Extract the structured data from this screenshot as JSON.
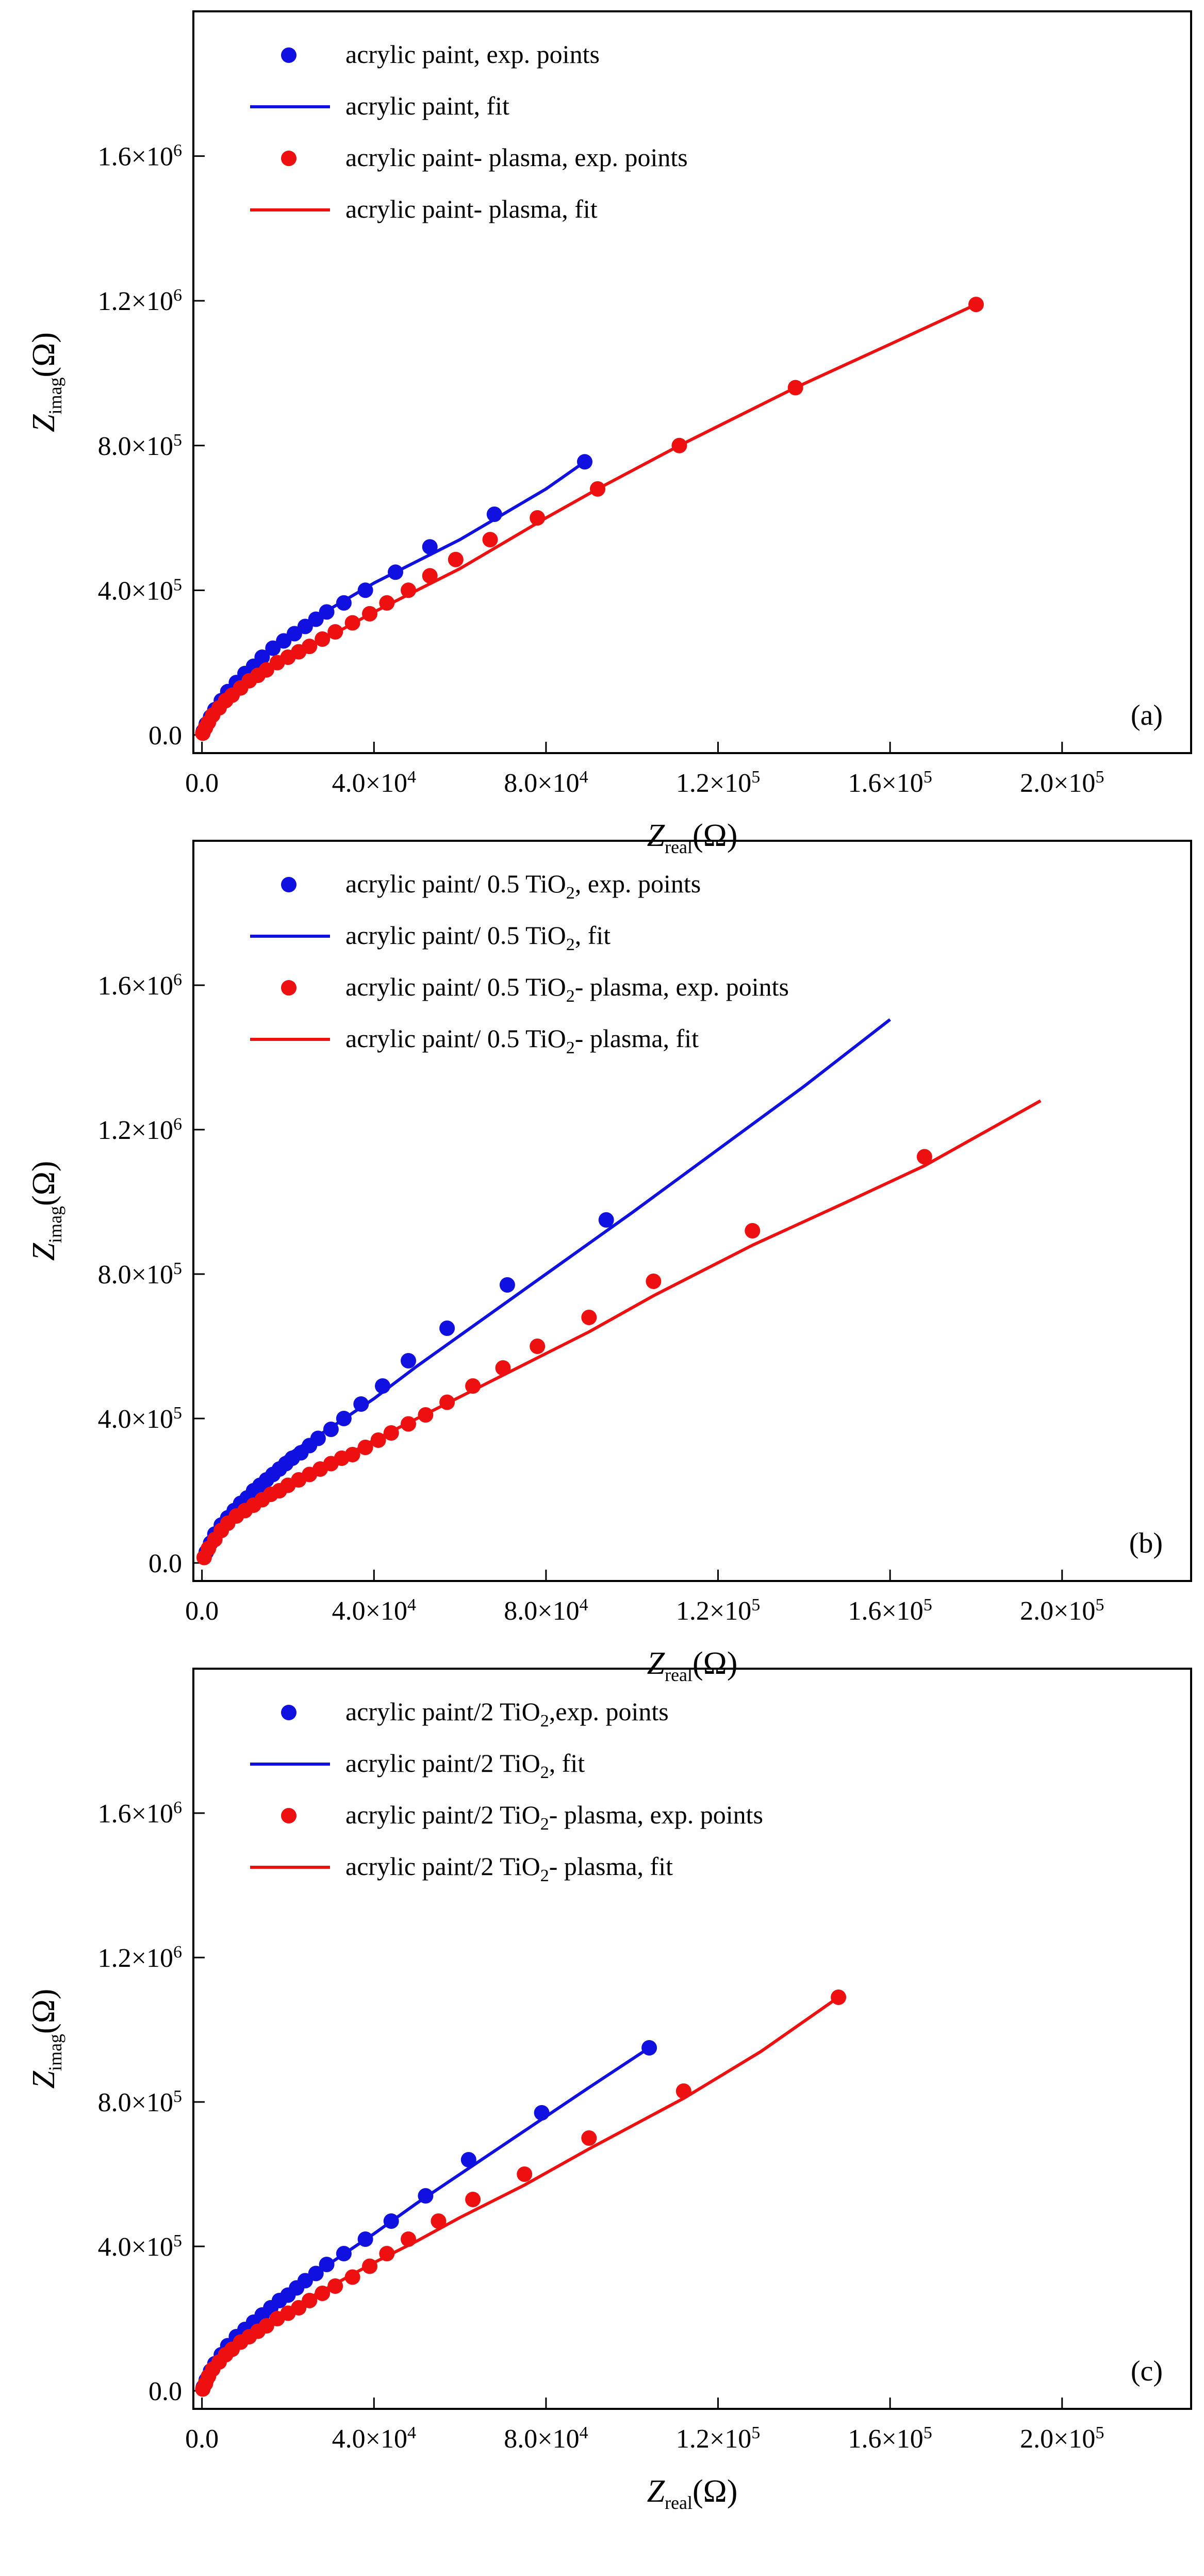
{
  "figure": {
    "panels": [
      {
        "tag": "(a)",
        "xlabel": {
          "main": "Z",
          "sub": "real",
          "unit": "(Ω)"
        },
        "ylabel": {
          "main": "Z",
          "sub": "imag",
          "unit": "(Ω)"
        },
        "xticks": [
          {
            "value": 0,
            "mant": "0.0",
            "exp": ""
          },
          {
            "value": 40000,
            "mant": "4.0×10",
            "exp": "4"
          },
          {
            "value": 80000,
            "mant": "8.0×10",
            "exp": "4"
          },
          {
            "value": 120000,
            "mant": "1.2×10",
            "exp": "5"
          },
          {
            "value": 160000,
            "mant": "1.6×10",
            "exp": "5"
          },
          {
            "value": 200000,
            "mant": "2.0×10",
            "exp": "5"
          }
        ],
        "yticks": [
          {
            "value": 0,
            "mant": "0.0",
            "exp": ""
          },
          {
            "value": 400000,
            "mant": "4.0×10",
            "exp": "5"
          },
          {
            "value": 800000,
            "mant": "8.0×10",
            "exp": "5"
          },
          {
            "value": 1200000,
            "mant": "1.2×10",
            "exp": "6"
          },
          {
            "value": 1600000,
            "mant": "1.6×10",
            "exp": "6"
          }
        ],
        "legend": [
          {
            "kind": "points",
            "color": "#1010e0",
            "text": "acrylic paint, exp. points"
          },
          {
            "kind": "line",
            "color": "#1010e0",
            "text": "acrylic paint, fit"
          },
          {
            "kind": "points",
            "color": "#ee1010",
            "text": "acrylic paint- plasma, exp. points"
          },
          {
            "kind": "line",
            "color": "#ee1010",
            "text": "acrylic paint- plasma, fit"
          }
        ]
      },
      {
        "tag": "(b)",
        "xlabel": {
          "main": "Z",
          "sub": "real",
          "unit": "(Ω)"
        },
        "ylabel": {
          "main": "Z",
          "sub": "imag",
          "unit": "(Ω)"
        },
        "xticks": [
          {
            "value": 0,
            "mant": "0.0",
            "exp": ""
          },
          {
            "value": 40000,
            "mant": "4.0×10",
            "exp": "4"
          },
          {
            "value": 80000,
            "mant": "8.0×10",
            "exp": "4"
          },
          {
            "value": 120000,
            "mant": "1.2×10",
            "exp": "5"
          },
          {
            "value": 160000,
            "mant": "1.6×10",
            "exp": "5"
          },
          {
            "value": 200000,
            "mant": "2.0×10",
            "exp": "5"
          }
        ],
        "yticks": [
          {
            "value": 0,
            "mant": "0.0",
            "exp": ""
          },
          {
            "value": 400000,
            "mant": "4.0×10",
            "exp": "5"
          },
          {
            "value": 800000,
            "mant": "8.0×10",
            "exp": "5"
          },
          {
            "value": 1200000,
            "mant": "1.2×10",
            "exp": "6"
          },
          {
            "value": 1600000,
            "mant": "1.6×10",
            "exp": "6"
          }
        ],
        "legend": [
          {
            "kind": "points",
            "color": "#1010e0",
            "pre": "acrylic paint/ 0.5 TiO",
            "sub": "2",
            "post": ",  exp. points"
          },
          {
            "kind": "line",
            "color": "#1010e0",
            "pre": "acrylic paint/ 0.5 TiO",
            "sub": "2",
            "post": ", fit"
          },
          {
            "kind": "points",
            "color": "#ee1010",
            "pre": "acrylic paint/ 0.5 TiO",
            "sub": "2",
            "post": "- plasma, exp. points"
          },
          {
            "kind": "line",
            "color": "#ee1010",
            "pre": "acrylic paint/ 0.5 TiO",
            "sub": "2",
            "post": "- plasma, fit"
          }
        ]
      },
      {
        "tag": "(c)",
        "xlabel": {
          "main": "Z",
          "sub": "real",
          "unit": "(Ω)"
        },
        "ylabel": {
          "main": "Z",
          "sub": "imag",
          "unit": "(Ω)"
        },
        "xticks": [
          {
            "value": 0,
            "mant": "0.0",
            "exp": ""
          },
          {
            "value": 40000,
            "mant": "4.0×10",
            "exp": "4"
          },
          {
            "value": 80000,
            "mant": "8.0×10",
            "exp": "4"
          },
          {
            "value": 120000,
            "mant": "1.2×10",
            "exp": "5"
          },
          {
            "value": 160000,
            "mant": "1.6×10",
            "exp": "5"
          },
          {
            "value": 200000,
            "mant": "2.0×10",
            "exp": "5"
          }
        ],
        "yticks": [
          {
            "value": 0,
            "mant": "0.0",
            "exp": ""
          },
          {
            "value": 400000,
            "mant": "4.0×10",
            "exp": "5"
          },
          {
            "value": 800000,
            "mant": "8.0×10",
            "exp": "5"
          },
          {
            "value": 1200000,
            "mant": "1.2×10",
            "exp": "6"
          },
          {
            "value": 1600000,
            "mant": "1.6×10",
            "exp": "6"
          }
        ],
        "legend": [
          {
            "kind": "points",
            "color": "#1010e0",
            "pre": "acrylic paint/2 TiO",
            "sub": "2",
            "post": ",exp. points"
          },
          {
            "kind": "line",
            "color": "#1010e0",
            "pre": "acrylic paint/2 TiO",
            "sub": "2",
            "post": ", fit"
          },
          {
            "kind": "points",
            "color": "#ee1010",
            "pre": "acrylic paint/2 TiO",
            "sub": "2",
            "post": "- plasma, exp. points"
          },
          {
            "kind": "line",
            "color": "#ee1010",
            "pre": "acrylic paint/2 TiO",
            "sub": "2",
            "post": "- plasma, fit"
          }
        ]
      }
    ]
  },
  "chart_data": [
    {
      "type": "scatter",
      "panel": "(a)",
      "title": "",
      "xlabel": "Z_real (Ω)",
      "ylabel": "Z_imag (Ω)",
      "xlim": [
        -2000,
        230000
      ],
      "ylim": [
        -50000,
        2000000
      ],
      "series": [
        {
          "name": "acrylic paint, exp. points",
          "style": "points",
          "color": "#1010e0",
          "x": [
            300,
            1000,
            2000,
            3000,
            4500,
            6000,
            8000,
            10000,
            12000,
            14000,
            16500,
            19000,
            21500,
            24000,
            26500,
            29000,
            33000,
            38000,
            45000,
            53000,
            68000,
            89000
          ],
          "y": [
            10000,
            30000,
            50000,
            70000,
            95000,
            120000,
            145000,
            170000,
            190000,
            215000,
            240000,
            260000,
            280000,
            300000,
            320000,
            340000,
            365000,
            400000,
            450000,
            520000,
            610000,
            755000
          ]
        },
        {
          "name": "acrylic paint, fit",
          "style": "line",
          "color": "#1010e0",
          "x": [
            0,
            2000,
            5000,
            10000,
            15000,
            20000,
            25000,
            30000,
            40000,
            50000,
            60000,
            70000,
            80000,
            89000
          ],
          "y": [
            0,
            45000,
            105000,
            170000,
            225000,
            275000,
            315000,
            350000,
            420000,
            480000,
            540000,
            610000,
            680000,
            755000
          ]
        },
        {
          "name": "acrylic paint- plasma, exp. points",
          "style": "points",
          "color": "#ee1010",
          "x": [
            200,
            800,
            1500,
            2500,
            4000,
            5500,
            7000,
            9000,
            11000,
            13000,
            15000,
            17500,
            20000,
            22500,
            25000,
            28000,
            31000,
            35000,
            39000,
            43000,
            48000,
            53000,
            59000,
            67000,
            78000,
            92000,
            111000,
            138000,
            180000
          ],
          "y": [
            5000,
            20000,
            35000,
            55000,
            75000,
            95000,
            110000,
            130000,
            150000,
            165000,
            180000,
            200000,
            215000,
            230000,
            245000,
            265000,
            285000,
            310000,
            335000,
            365000,
            400000,
            440000,
            485000,
            540000,
            600000,
            680000,
            800000,
            960000,
            1190000
          ]
        },
        {
          "name": "acrylic paint- plasma, fit",
          "style": "line",
          "color": "#ee1010",
          "x": [
            0,
            2000,
            5000,
            10000,
            20000,
            30000,
            40000,
            50000,
            60000,
            70000,
            80000,
            92000,
            111000,
            138000,
            160000,
            180000
          ],
          "y": [
            0,
            40000,
            90000,
            140000,
            215000,
            275000,
            340000,
            400000,
            460000,
            530000,
            600000,
            680000,
            800000,
            960000,
            1080000,
            1190000
          ]
        }
      ]
    },
    {
      "type": "scatter",
      "panel": "(b)",
      "title": "",
      "xlabel": "Z_real (Ω)",
      "ylabel": "Z_imag (Ω)",
      "xlim": [
        -2000,
        230000
      ],
      "ylim": [
        -50000,
        2000000
      ],
      "series": [
        {
          "name": "acrylic paint/ 0.5 TiO2,  exp. points",
          "style": "points",
          "color": "#1010e0",
          "x": [
            1000,
            2000,
            3000,
            4500,
            6000,
            7500,
            9000,
            10500,
            12000,
            13500,
            15000,
            16500,
            18000,
            19500,
            21000,
            23000,
            25000,
            27000,
            30000,
            33000,
            37000,
            42000,
            48000,
            57000,
            71000,
            94000
          ],
          "y": [
            30000,
            55000,
            80000,
            105000,
            125000,
            145000,
            165000,
            180000,
            200000,
            215000,
            230000,
            245000,
            260000,
            275000,
            290000,
            305000,
            325000,
            345000,
            370000,
            400000,
            440000,
            490000,
            560000,
            650000,
            770000,
            950000
          ]
        },
        {
          "name": "acrylic paint/ 0.5 TiO2, fit",
          "style": "line",
          "color": "#1010e0",
          "x": [
            0,
            2000,
            5000,
            10000,
            20000,
            30000,
            40000,
            50000,
            60000,
            70000,
            80000,
            100000,
            120000,
            140000,
            160000
          ],
          "y": [
            0,
            55000,
            120000,
            190000,
            300000,
            375000,
            455000,
            545000,
            630000,
            715000,
            800000,
            970000,
            1145000,
            1320000,
            1505000
          ]
        },
        {
          "name": "acrylic paint/ 0.5 TiO2- plasma, exp. points",
          "style": "points",
          "color": "#ee1010",
          "x": [
            500,
            1500,
            3000,
            4500,
            6000,
            8000,
            10000,
            12000,
            14000,
            16000,
            18000,
            20000,
            22500,
            25000,
            27500,
            30000,
            32500,
            35000,
            38000,
            41000,
            44000,
            48000,
            52000,
            57000,
            63000,
            70000,
            78000,
            90000,
            105000,
            128000,
            168000
          ],
          "y": [
            15000,
            40000,
            65000,
            90000,
            110000,
            130000,
            145000,
            160000,
            175000,
            190000,
            200000,
            215000,
            230000,
            245000,
            260000,
            275000,
            290000,
            300000,
            320000,
            340000,
            360000,
            385000,
            410000,
            445000,
            490000,
            540000,
            600000,
            680000,
            780000,
            920000,
            1125000
          ]
        },
        {
          "name": "acrylic paint/ 0.5 TiO2- plasma, fit",
          "style": "line",
          "color": "#ee1010",
          "x": [
            0,
            2000,
            5000,
            10000,
            20000,
            30000,
            40000,
            50000,
            60000,
            70000,
            80000,
            90000,
            105000,
            128000,
            150000,
            168000,
            195000
          ],
          "y": [
            0,
            45000,
            90000,
            145000,
            215000,
            275000,
            340000,
            400000,
            460000,
            520000,
            580000,
            640000,
            740000,
            880000,
            1000000,
            1100000,
            1280000
          ]
        }
      ]
    },
    {
      "type": "scatter",
      "panel": "(c)",
      "title": "",
      "xlabel": "Z_real (Ω)",
      "ylabel": "Z_imag (Ω)",
      "xlim": [
        -2000,
        230000
      ],
      "ylim": [
        -50000,
        2000000
      ],
      "series": [
        {
          "name": "acrylic paint/2 TiO2,exp. points",
          "style": "points",
          "color": "#1010e0",
          "x": [
            300,
            1000,
            2000,
            3000,
            4500,
            6000,
            8000,
            10000,
            12000,
            14000,
            16000,
            18000,
            20000,
            22000,
            24000,
            26500,
            29000,
            33000,
            38000,
            44000,
            52000,
            62000,
            79000,
            104000
          ],
          "y": [
            10000,
            30000,
            55000,
            75000,
            100000,
            125000,
            150000,
            170000,
            190000,
            210000,
            230000,
            250000,
            265000,
            285000,
            305000,
            325000,
            350000,
            380000,
            420000,
            470000,
            540000,
            640000,
            770000,
            950000
          ]
        },
        {
          "name": "acrylic paint/2 TiO2, fit",
          "style": "line",
          "color": "#1010e0",
          "x": [
            0,
            2000,
            5000,
            10000,
            20000,
            30000,
            40000,
            50000,
            60000,
            70000,
            80000,
            90000,
            104000
          ],
          "y": [
            0,
            50000,
            110000,
            175000,
            275000,
            355000,
            435000,
            520000,
            600000,
            680000,
            760000,
            840000,
            950000
          ]
        },
        {
          "name": "acrylic paint/2 TiO2- plasma, exp. points",
          "style": "points",
          "color": "#ee1010",
          "x": [
            200,
            800,
            1500,
            2500,
            4000,
            5500,
            7000,
            9000,
            11000,
            13000,
            15000,
            17500,
            20000,
            22500,
            25000,
            28000,
            31000,
            35000,
            39000,
            43000,
            48000,
            55000,
            63000,
            75000,
            90000,
            112000,
            148000
          ],
          "y": [
            5000,
            20000,
            40000,
            60000,
            80000,
            100000,
            115000,
            135000,
            150000,
            165000,
            180000,
            200000,
            215000,
            230000,
            250000,
            270000,
            290000,
            315000,
            345000,
            380000,
            420000,
            470000,
            530000,
            600000,
            700000,
            830000,
            1090000
          ]
        },
        {
          "name": "acrylic paint/2 TiO2- plasma, fit",
          "style": "line",
          "color": "#ee1010",
          "x": [
            0,
            2000,
            5000,
            10000,
            20000,
            30000,
            40000,
            50000,
            60000,
            75000,
            90000,
            112000,
            130000,
            148000
          ],
          "y": [
            0,
            40000,
            90000,
            145000,
            225000,
            290000,
            355000,
            415000,
            480000,
            570000,
            670000,
            810000,
            940000,
            1090000
          ]
        }
      ]
    }
  ]
}
